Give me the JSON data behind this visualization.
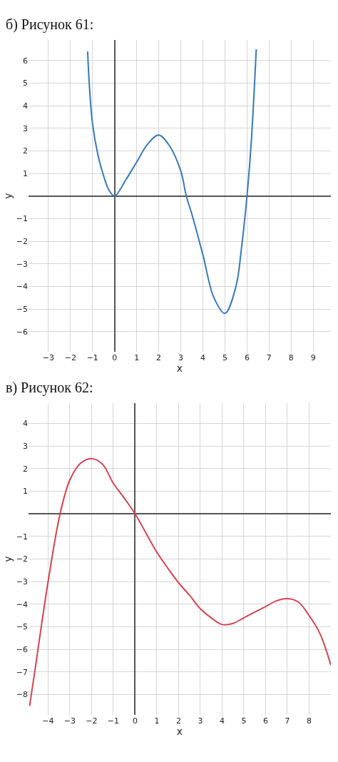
{
  "chart_data": [
    {
      "type": "line",
      "title": "б) Рисунок 61:",
      "xlabel": "x",
      "ylabel": "y",
      "xlim": [
        -3.9,
        9.8
      ],
      "ylim": [
        -6.9,
        6.9
      ],
      "xticks": [
        -3,
        -2,
        -1,
        0,
        1,
        2,
        3,
        4,
        5,
        6,
        7,
        8,
        9
      ],
      "yticks": [
        -6,
        -5,
        -4,
        -3,
        -2,
        -1,
        1,
        2,
        3,
        4,
        5,
        6
      ],
      "grid": true,
      "marker": "none",
      "line_style": "solid",
      "series": [
        {
          "color": "#3a78b5",
          "x": [
            -1.22,
            -1.15,
            -1,
            -0.75,
            -0.5,
            -0.25,
            0,
            0.5,
            1,
            1.5,
            2,
            2.5,
            3,
            3.25,
            3.5,
            4,
            4.5,
            5,
            5.5,
            5.75,
            6,
            6.2,
            6.42
          ],
          "values": [
            6.4,
            5.0,
            3.2,
            1.8,
            0.9,
            0.25,
            0,
            0.7,
            1.5,
            2.3,
            2.7,
            2.2,
            1.1,
            0,
            -0.8,
            -2.6,
            -4.5,
            -5.2,
            -4.0,
            -2.3,
            0,
            2.5,
            6.5
          ]
        }
      ]
    },
    {
      "type": "line",
      "title": "в) Рисунок 62:",
      "xlabel": "x",
      "ylabel": "y",
      "xlim": [
        -4.9,
        9.0
      ],
      "ylim": [
        -8.9,
        4.9
      ],
      "xticks": [
        -4,
        -3,
        -2,
        -1,
        0,
        1,
        2,
        3,
        4,
        5,
        6,
        7,
        8
      ],
      "yticks": [
        -8,
        -7,
        -6,
        -5,
        -4,
        -3,
        -2,
        -1,
        1,
        2,
        3,
        4
      ],
      "grid": true,
      "marker": "none",
      "line_style": "solid",
      "series": [
        {
          "color": "#d2434f",
          "x": [
            -4.85,
            -4.6,
            -4.3,
            -4,
            -3.45,
            -3,
            -2.5,
            -2,
            -1.5,
            -1,
            -0.5,
            0,
            0.5,
            1,
            1.5,
            2,
            2.5,
            3,
            3.5,
            4,
            4.5,
            5,
            5.5,
            6,
            6.5,
            7,
            7.5,
            8,
            8.5,
            9
          ],
          "values": [
            -8.5,
            -6.9,
            -4.9,
            -3.0,
            0,
            1.5,
            2.25,
            2.45,
            2.2,
            1.35,
            0.7,
            0,
            -0.85,
            -1.7,
            -2.4,
            -3.05,
            -3.6,
            -4.2,
            -4.6,
            -4.9,
            -4.85,
            -4.6,
            -4.35,
            -4.1,
            -3.85,
            -3.75,
            -3.9,
            -4.5,
            -5.3,
            -6.7
          ]
        }
      ]
    }
  ]
}
